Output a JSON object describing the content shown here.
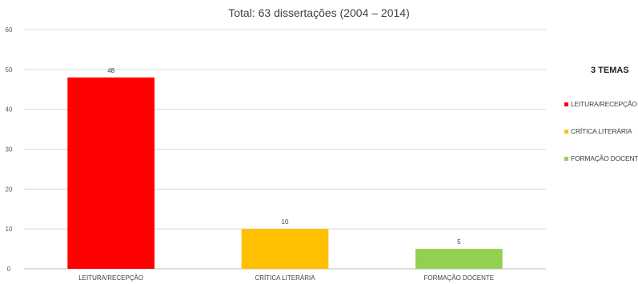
{
  "chart_data": {
    "type": "bar",
    "title": "Total: 63 dissertações (2004 – 2014)",
    "categories": [
      "LEITURA/RECEPÇÃO",
      "CRÍTICA LITERÁRIA",
      "FORMAÇÃO DOCENTE"
    ],
    "values": [
      48,
      10,
      5
    ],
    "colors": [
      "#ff0000",
      "#ffc000",
      "#92d050"
    ],
    "ylim": [
      0,
      60
    ],
    "yticks": [
      0,
      10,
      20,
      30,
      40,
      50,
      60
    ],
    "grid": true,
    "data_labels": true,
    "legend": {
      "title": "3 TEMAS",
      "placement": "right"
    }
  }
}
